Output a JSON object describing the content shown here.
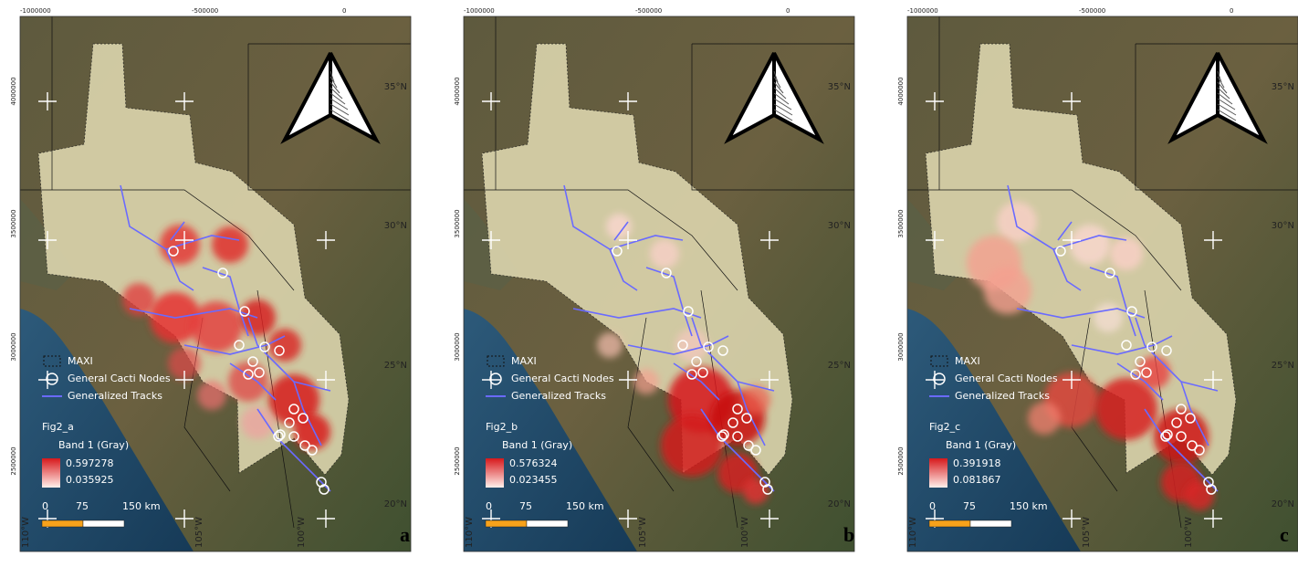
{
  "panels": [
    {
      "label": "a",
      "top_coords": [
        "-1000000",
        "-500000",
        "0"
      ],
      "left_coords": [
        "4000000",
        "3500000",
        "3000000",
        "2500000"
      ],
      "lat_labels": [
        "35°N",
        "30°N",
        "25°N",
        "20°N"
      ],
      "lon_labels": [
        "110°W",
        "105°W",
        "100°W"
      ],
      "legend": {
        "maxi": "MAXI",
        "nodes": "General Cacti Nodes",
        "tracks": "Generalized Tracks",
        "layer": "Fig2_a",
        "band": "Band 1 (Gray)",
        "max": "0.597278",
        "min": "0.035925"
      },
      "scale": [
        "0",
        "75",
        "150 km"
      ]
    },
    {
      "label": "b",
      "top_coords": [
        "-1000000",
        "-500000",
        "0"
      ],
      "left_coords": [
        "4000000",
        "3500000",
        "3000000",
        "2500000"
      ],
      "lat_labels": [
        "35°N",
        "30°N",
        "25°N",
        "20°N"
      ],
      "lon_labels": [
        "110°W",
        "105°W",
        "100°W"
      ],
      "legend": {
        "maxi": "MAXI",
        "nodes": "General Cacti Nodes",
        "tracks": "Generalized Tracks",
        "layer": "Fig2_b",
        "band": "Band 1 (Gray)",
        "max": "0.576324",
        "min": "0.023455"
      },
      "scale": [
        "0",
        "75",
        "150 km"
      ]
    },
    {
      "label": "c",
      "top_coords": [
        "-1000000",
        "-500000",
        "0"
      ],
      "left_coords": [
        "4000000",
        "3500000",
        "3000000",
        "2500000"
      ],
      "lat_labels": [
        "35°N",
        "30°N",
        "25°N",
        "20°N"
      ],
      "lon_labels": [
        "110°W",
        "105°W",
        "100°W"
      ],
      "legend": {
        "maxi": "MAXI",
        "nodes": "General Cacti Nodes",
        "tracks": "Generalized Tracks",
        "layer": "Fig2_c",
        "band": "Band 1 (Gray)",
        "max": "0.391918",
        "min": "0.081867"
      },
      "scale": [
        "0",
        "75",
        "150 km"
      ]
    }
  ]
}
